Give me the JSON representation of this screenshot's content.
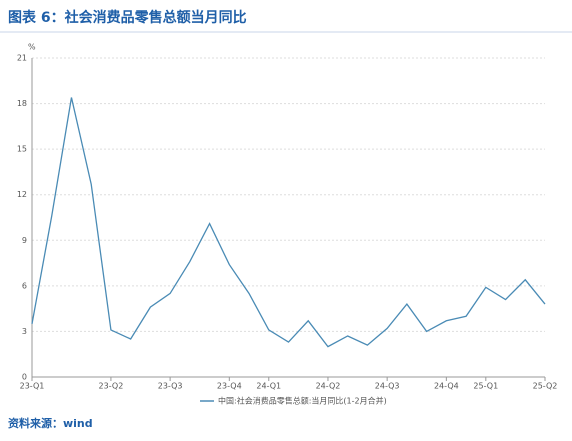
{
  "chart_data": {
    "type": "line",
    "title": "图表 6：社会消费品零售总额当月同比",
    "source": "资料来源：wind",
    "y_unit": "%",
    "categories": [
      "23-Q1",
      null,
      null,
      null,
      "23-Q2",
      null,
      null,
      "23-Q3",
      null,
      null,
      "23-Q4",
      null,
      "24-Q1",
      null,
      null,
      "24-Q2",
      null,
      null,
      "24-Q3",
      null,
      null,
      "24-Q4",
      null,
      "25-Q1",
      null,
      null,
      "25-Q2"
    ],
    "series": [
      {
        "name": "中国:社会消费品零售总额:当月同比(1-2月合并)",
        "color": "#4a8bb5",
        "values": [
          3.5,
          10.6,
          18.4,
          12.7,
          3.1,
          2.5,
          4.6,
          5.5,
          7.6,
          10.1,
          7.4,
          5.5,
          3.1,
          2.3,
          3.7,
          2.0,
          2.7,
          2.1,
          3.2,
          4.8,
          3.0,
          3.7,
          4.0,
          5.9,
          5.1,
          6.4,
          4.8
        ]
      }
    ],
    "ylim": [
      0,
      21
    ],
    "yticks": [
      0,
      3,
      6,
      9,
      12,
      15,
      18,
      21
    ],
    "grid": true,
    "legend": "bottom"
  }
}
